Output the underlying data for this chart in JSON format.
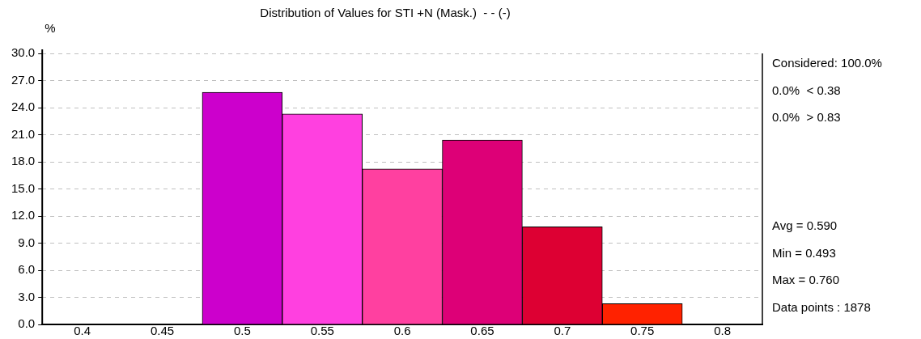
{
  "chart_data": {
    "type": "histogram",
    "title": "Distribution of Values for STI +N (Mask.)  - - (-)",
    "ylabel": "%",
    "bins": [
      0.475,
      0.525,
      0.575,
      0.625,
      0.675,
      0.725,
      0.775
    ],
    "values": [
      25.7,
      23.3,
      17.2,
      20.4,
      10.8,
      2.3
    ],
    "colors": [
      "#cc00cc",
      "#ff40e0",
      "#ff40a0",
      "#dd0077",
      "#dd0033",
      "#ff2200"
    ],
    "xlim": [
      0.375,
      0.825
    ],
    "xticks": [
      0.4,
      0.45,
      0.5,
      0.55,
      0.6,
      0.65,
      0.7,
      0.75,
      0.8
    ],
    "ylim": [
      0,
      30
    ],
    "yticks": [
      {
        "value": 0,
        "label": "0.0"
      },
      {
        "value": 3,
        "label": "3.0"
      },
      {
        "value": 6,
        "label": "6.0"
      },
      {
        "value": 9,
        "label": "9.0"
      },
      {
        "value": 12,
        "label": "12.0"
      },
      {
        "value": 15,
        "label": "15.0"
      },
      {
        "value": 18,
        "label": "18.0"
      },
      {
        "value": 21,
        "label": "21.0"
      },
      {
        "value": 24,
        "label": "24.0"
      },
      {
        "value": 27,
        "label": "27.0"
      },
      {
        "value": 30,
        "label": "30.0"
      }
    ],
    "grid": "y",
    "legend": false,
    "annotations": [
      "Considered: 100.0%",
      "0.0%  < 0.38",
      "0.0%  > 0.83",
      "Avg = 0.590",
      "Min = 0.493",
      "Max = 0.760",
      "Data points : 1878"
    ]
  }
}
